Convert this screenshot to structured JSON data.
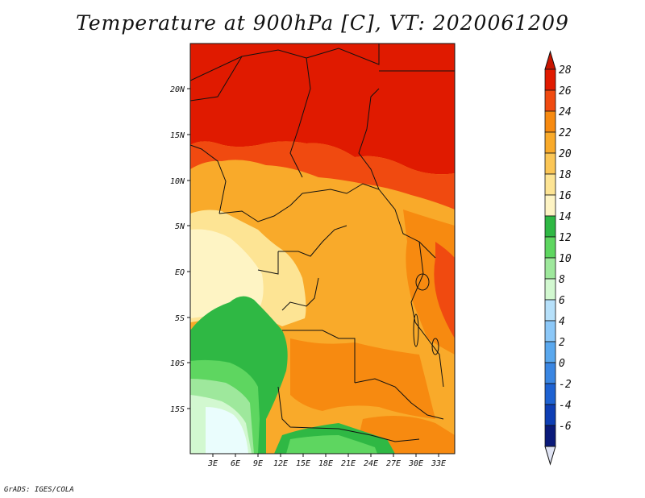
{
  "title": "Temperature at 900hPa [C], VT: 2020061209",
  "credit": "GrADS: IGES/COLA",
  "map": {
    "lat_labels": [
      "20N",
      "15N",
      "10N",
      "5N",
      "EQ",
      "5S",
      "10S",
      "15S"
    ],
    "lon_labels": [
      "3E",
      "6E",
      "9E",
      "12E",
      "15E",
      "18E",
      "21E",
      "24E",
      "27E",
      "30E",
      "33E"
    ]
  },
  "colorbar": {
    "labels": [
      "28",
      "26",
      "24",
      "22",
      "20",
      "18",
      "16",
      "14",
      "12",
      "10",
      "8",
      "6",
      "4",
      "2",
      "0",
      "-2",
      "-4",
      "-6"
    ],
    "colors": [
      "#e01a00",
      "#f04a10",
      "#f78a10",
      "#f9aa2a",
      "#fbc656",
      "#fde494",
      "#fef4c4",
      "#2fb844",
      "#5ed660",
      "#9ee89c",
      "#d2f8d0",
      "#b6e0fa",
      "#8cc8f8",
      "#5aa8ee",
      "#3a86e2",
      "#1e62d2",
      "#0e3eb4",
      "#0a1a7a"
    ],
    "top_arrow_color": "#c81400",
    "bottom_arrow_color": "#e0e4f4"
  }
}
